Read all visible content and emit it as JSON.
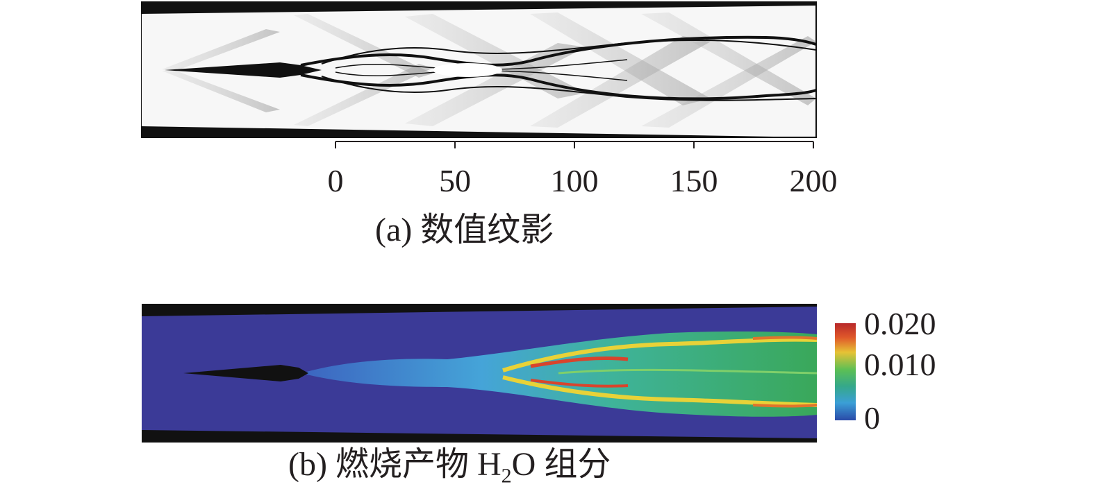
{
  "panel_a": {
    "caption_letter": "(a)",
    "caption_text": "数值纹影",
    "x_ticks": [
      "0",
      "50",
      "100",
      "150",
      "200"
    ]
  },
  "panel_b": {
    "caption_letter": "(b)",
    "caption_pre": "燃烧产物",
    "caption_species_main": "H",
    "caption_species_sub": "2",
    "caption_species_end": "O",
    "caption_post": "组分",
    "colorbar_labels": [
      "0.020",
      "0.010",
      "0"
    ],
    "colorbar_values": [
      0.02,
      0.01,
      0
    ]
  },
  "colors": {
    "wall": "#111111",
    "background_b": "#3b3a97",
    "low": "#2b3fa0",
    "mid": "#35b36a",
    "high": "#e03a2a"
  }
}
